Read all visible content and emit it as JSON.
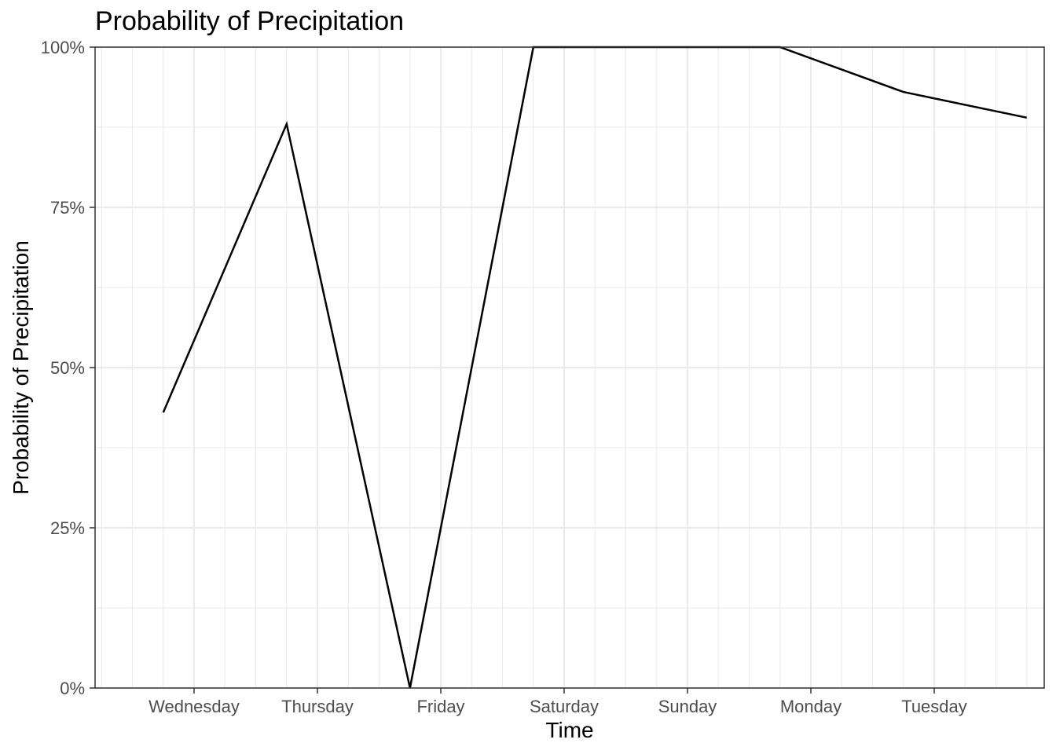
{
  "chart_data": {
    "type": "line",
    "title": "Probability of Precipitation",
    "xlabel": "Time",
    "ylabel": "Probability of Precipitation",
    "x_tick_labels": [
      "Wednesday",
      "Thursday",
      "Friday",
      "Saturday",
      "Sunday",
      "Monday",
      "Tuesday"
    ],
    "y_tick_labels": [
      "0%",
      "25%",
      "50%",
      "75%",
      "100%"
    ],
    "y_ticks": [
      0,
      25,
      50,
      75,
      100
    ],
    "ylim": [
      0,
      100
    ],
    "grid": true,
    "legend": "none",
    "line_color": "#000000",
    "series": [
      {
        "x": [
          "Tuesday 18:00",
          "Wednesday 18:00",
          "Thursday 18:00",
          "Friday 18:00",
          "Saturday 18:00",
          "Sunday 18:00",
          "Monday 18:00",
          "Tuesday 18:00"
        ],
        "values": [
          43,
          88,
          0,
          100,
          100,
          100,
          93,
          89
        ]
      }
    ]
  }
}
